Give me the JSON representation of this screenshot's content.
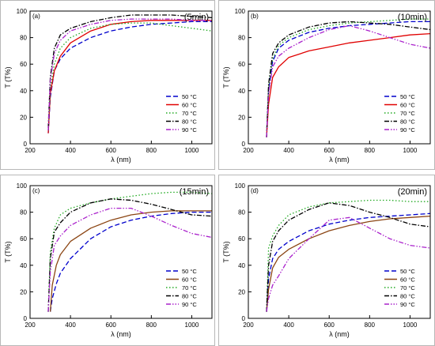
{
  "chart_data": [
    {
      "type": "line",
      "panel_label": "(a)",
      "annotation": "(5min)",
      "xlabel": "λ (nm)",
      "ylabel": "T (T%)",
      "xlim": [
        200,
        1100
      ],
      "ylim": [
        0,
        100
      ],
      "xticks": [
        200,
        400,
        600,
        800,
        1000
      ],
      "yticks": [
        0,
        20,
        40,
        60,
        80,
        100
      ],
      "legend_position": "bottom-right",
      "series": [
        {
          "name": "50 °C",
          "color": "#0000cc",
          "dash": "dash",
          "x": [
            290,
            300,
            320,
            350,
            400,
            500,
            600,
            700,
            800,
            900,
            1000,
            1100
          ],
          "y": [
            8,
            35,
            55,
            64,
            72,
            80,
            85,
            88,
            90,
            91,
            92,
            92
          ]
        },
        {
          "name": "60 °C",
          "color": "#e00000",
          "dash": "solid",
          "x": [
            290,
            300,
            320,
            350,
            400,
            500,
            600,
            700,
            800,
            900,
            1000,
            1100
          ],
          "y": [
            8,
            38,
            55,
            66,
            76,
            85,
            90,
            92,
            93,
            93,
            93,
            93
          ]
        },
        {
          "name": "70 °C",
          "color": "#22aa22",
          "dash": "dot",
          "x": [
            290,
            300,
            320,
            350,
            400,
            500,
            600,
            700,
            800,
            900,
            1000,
            1100
          ],
          "y": [
            10,
            42,
            60,
            72,
            80,
            87,
            90,
            91,
            91,
            89,
            87,
            85
          ]
        },
        {
          "name": "80 °C",
          "color": "#000000",
          "dash": "dashdot",
          "x": [
            290,
            300,
            320,
            350,
            400,
            500,
            600,
            700,
            800,
            900,
            1000,
            1100
          ],
          "y": [
            12,
            50,
            72,
            82,
            87,
            92,
            95,
            97,
            97,
            97,
            96,
            95
          ]
        },
        {
          "name": "90 °C",
          "color": "#aa22cc",
          "dash": "dashdotdot",
          "x": [
            290,
            300,
            320,
            350,
            400,
            500,
            600,
            700,
            800,
            900,
            1000,
            1100
          ],
          "y": [
            10,
            48,
            68,
            78,
            85,
            90,
            93,
            94,
            94,
            94,
            93,
            93
          ]
        }
      ]
    },
    {
      "type": "line",
      "panel_label": "(b)",
      "annotation": "(10min)",
      "xlabel": "λ (nm)",
      "ylabel": "T (T%)",
      "xlim": [
        200,
        1100
      ],
      "ylim": [
        0,
        100
      ],
      "xticks": [
        200,
        400,
        600,
        800,
        1000
      ],
      "yticks": [
        0,
        20,
        40,
        60,
        80,
        100
      ],
      "legend_position": "bottom-right",
      "series": [
        {
          "name": "50 °C",
          "color": "#0000cc",
          "dash": "dash",
          "x": [
            290,
            300,
            320,
            350,
            400,
            500,
            600,
            700,
            800,
            900,
            1000,
            1100
          ],
          "y": [
            5,
            40,
            62,
            72,
            78,
            84,
            87,
            89,
            90,
            91,
            92,
            92
          ]
        },
        {
          "name": "60 °C",
          "color": "#e00000",
          "dash": "solid",
          "x": [
            290,
            300,
            320,
            350,
            400,
            500,
            600,
            700,
            800,
            900,
            1000,
            1100
          ],
          "y": [
            5,
            30,
            50,
            58,
            65,
            70,
            73,
            76,
            78,
            80,
            82,
            83
          ]
        },
        {
          "name": "70 °C",
          "color": "#22aa22",
          "dash": "dot",
          "x": [
            290,
            300,
            320,
            350,
            400,
            500,
            600,
            700,
            800,
            900,
            1000,
            1100
          ],
          "y": [
            5,
            42,
            64,
            74,
            80,
            86,
            89,
            91,
            92,
            93,
            94,
            94
          ]
        },
        {
          "name": "80 °C",
          "color": "#000000",
          "dash": "dashdot",
          "x": [
            290,
            300,
            320,
            350,
            400,
            500,
            600,
            700,
            800,
            900,
            1000,
            1100
          ],
          "y": [
            5,
            45,
            68,
            76,
            82,
            88,
            91,
            92,
            91,
            90,
            88,
            86
          ]
        },
        {
          "name": "90 °C",
          "color": "#aa22cc",
          "dash": "dashdotdot",
          "x": [
            290,
            300,
            320,
            350,
            400,
            500,
            600,
            700,
            800,
            900,
            1000,
            1100
          ],
          "y": [
            5,
            38,
            58,
            66,
            72,
            80,
            86,
            89,
            85,
            80,
            75,
            72
          ]
        }
      ]
    },
    {
      "type": "line",
      "panel_label": "(c)",
      "annotation": "(15min)",
      "xlabel": "λ (nm)",
      "ylabel": "T (T%)",
      "xlim": [
        200,
        1100
      ],
      "ylim": [
        0,
        100
      ],
      "xticks": [
        200,
        400,
        600,
        800,
        1000
      ],
      "yticks": [
        0,
        20,
        40,
        60,
        80,
        100
      ],
      "legend_position": "bottom-right",
      "series": [
        {
          "name": "50 °C",
          "color": "#0000cc",
          "dash": "dash",
          "x": [
            300,
            310,
            330,
            350,
            400,
            500,
            600,
            700,
            800,
            900,
            1000,
            1100
          ],
          "y": [
            5,
            15,
            26,
            34,
            45,
            60,
            69,
            74,
            77,
            79,
            80,
            80
          ]
        },
        {
          "name": "60 °C",
          "color": "#8b4513",
          "dash": "solid",
          "x": [
            300,
            310,
            330,
            350,
            400,
            500,
            600,
            700,
            800,
            900,
            1000,
            1100
          ],
          "y": [
            5,
            25,
            40,
            48,
            58,
            68,
            74,
            78,
            80,
            81,
            81,
            81
          ]
        },
        {
          "name": "70 °C",
          "color": "#22aa22",
          "dash": "dot",
          "x": [
            290,
            300,
            320,
            350,
            400,
            500,
            600,
            700,
            800,
            900,
            1000,
            1100
          ],
          "y": [
            5,
            50,
            68,
            78,
            83,
            87,
            90,
            92,
            94,
            95,
            95,
            94
          ]
        },
        {
          "name": "80 °C",
          "color": "#000000",
          "dash": "dashdot",
          "x": [
            290,
            300,
            320,
            350,
            400,
            500,
            600,
            700,
            800,
            900,
            1000,
            1100
          ],
          "y": [
            5,
            45,
            65,
            72,
            80,
            87,
            90,
            89,
            86,
            82,
            78,
            77
          ]
        },
        {
          "name": "90 °C",
          "color": "#aa22cc",
          "dash": "dashdotdot",
          "x": [
            290,
            300,
            320,
            350,
            400,
            500,
            600,
            700,
            800,
            900,
            1000,
            1100
          ],
          "y": [
            5,
            35,
            55,
            62,
            70,
            78,
            83,
            83,
            77,
            70,
            64,
            61
          ]
        }
      ]
    },
    {
      "type": "line",
      "panel_label": "(d)",
      "annotation": "(20min)",
      "xlabel": "λ (nm)",
      "ylabel": "T (T%)",
      "xlim": [
        200,
        1100
      ],
      "ylim": [
        0,
        100
      ],
      "xticks": [
        200,
        400,
        600,
        800,
        1000
      ],
      "yticks": [
        0,
        20,
        40,
        60,
        80,
        100
      ],
      "legend_position": "bottom-right",
      "series": [
        {
          "name": "50 °C",
          "color": "#0000cc",
          "dash": "dash",
          "x": [
            290,
            300,
            320,
            350,
            400,
            500,
            600,
            700,
            800,
            900,
            1000,
            1100
          ],
          "y": [
            5,
            30,
            45,
            52,
            58,
            66,
            71,
            74,
            76,
            77,
            78,
            79
          ]
        },
        {
          "name": "60 °C",
          "color": "#8b4513",
          "dash": "solid",
          "x": [
            290,
            300,
            320,
            350,
            400,
            500,
            600,
            700,
            800,
            900,
            1000,
            1100
          ],
          "y": [
            5,
            22,
            38,
            46,
            52,
            60,
            66,
            70,
            73,
            75,
            76,
            77
          ]
        },
        {
          "name": "70 °C",
          "color": "#22aa22",
          "dash": "dot",
          "x": [
            290,
            300,
            320,
            350,
            400,
            500,
            600,
            700,
            800,
            900,
            1000,
            1100
          ],
          "y": [
            5,
            53,
            62,
            70,
            78,
            84,
            87,
            88,
            89,
            89,
            88,
            88
          ]
        },
        {
          "name": "80 °C",
          "color": "#000000",
          "dash": "dashdot",
          "x": [
            290,
            300,
            320,
            350,
            400,
            500,
            600,
            700,
            800,
            900,
            1000,
            1100
          ],
          "y": [
            5,
            40,
            58,
            66,
            74,
            82,
            87,
            85,
            80,
            76,
            71,
            69
          ]
        },
        {
          "name": "90 °C",
          "color": "#aa22cc",
          "dash": "dashdotdot",
          "x": [
            290,
            300,
            320,
            350,
            400,
            500,
            600,
            700,
            800,
            900,
            1000,
            1100
          ],
          "y": [
            5,
            15,
            25,
            32,
            45,
            60,
            74,
            76,
            68,
            60,
            55,
            53
          ]
        }
      ]
    }
  ]
}
